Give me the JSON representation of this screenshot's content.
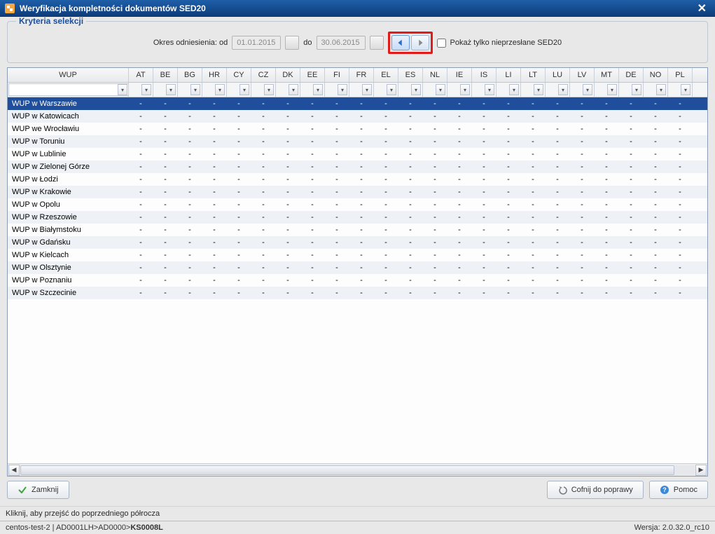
{
  "window": {
    "title": "Weryfikacja kompletności dokumentów SED20"
  },
  "criteria": {
    "legend": "Kryteria selekcji",
    "period_label": "Okres odniesienia: od",
    "date_from": "01.01.2015",
    "to_label": "do",
    "date_to": "30.06.2015",
    "show_unsent_label": "Pokaż tylko nieprzesłane SED20",
    "show_unsent_checked": false
  },
  "grid": {
    "columns": [
      "WUP",
      "AT",
      "BE",
      "BG",
      "HR",
      "CY",
      "CZ",
      "DK",
      "EE",
      "FI",
      "FR",
      "EL",
      "ES",
      "NL",
      "IE",
      "IS",
      "LI",
      "LT",
      "LU",
      "LV",
      "MT",
      "DE",
      "NO",
      "PL"
    ],
    "col_wup_width": 173,
    "col_cc_width": 35,
    "rows": [
      {
        "name": "WUP w Warszawie",
        "selected": true
      },
      {
        "name": "WUP w Katowicach"
      },
      {
        "name": "WUP we Wrocławiu"
      },
      {
        "name": "WUP w Toruniu"
      },
      {
        "name": "WUP w Lublinie"
      },
      {
        "name": "WUP w Zielonej Górze"
      },
      {
        "name": "WUP w Łodzi"
      },
      {
        "name": "WUP w Krakowie"
      },
      {
        "name": "WUP w Opolu"
      },
      {
        "name": "WUP w Rzeszowie"
      },
      {
        "name": "WUP w Białymstoku"
      },
      {
        "name": "WUP w Gdańsku"
      },
      {
        "name": "WUP w Kielcach"
      },
      {
        "name": "WUP w Olsztynie"
      },
      {
        "name": "WUP w Poznaniu"
      },
      {
        "name": "WUP w Szczecinie"
      }
    ],
    "cell_value": "-"
  },
  "buttons": {
    "close": "Zamknij",
    "undo": "Cofnij do poprawy",
    "help": "Pomoc"
  },
  "hint": "Kliknij, aby przejść do poprzedniego półrocza",
  "status": {
    "left_prefix": "centos-test-2 | AD0001LH>AD0000>",
    "left_bold": "KS0008L",
    "right": "Wersja: 2.0.32.0_rc10"
  },
  "colors": {
    "titlebar_top": "#1e5fa8",
    "titlebar_bottom": "#0e3d7a",
    "selection": "#1e4e9c",
    "highlight_box": "#e11a1a",
    "legend_text": "#1b4f9b"
  }
}
